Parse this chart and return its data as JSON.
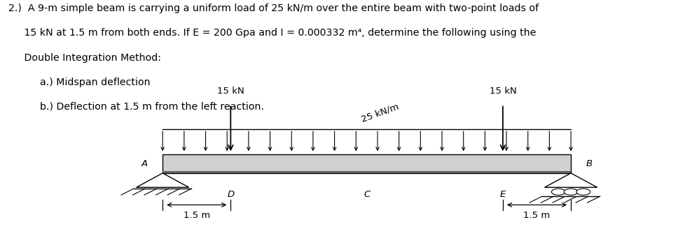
{
  "title_lines": [
    "2.)  A 9-m simple beam is carrying a uniform load of 25 kN/m over the entire beam with two-point loads of",
    "     15 kN at 1.5 m from both ends. If E = 200 Gpa and I = 0.000332 m⁴, determine the following using the",
    "     Double Integration Method:",
    "          a.) Midspan deflection",
    "          b.) Deflection at 1.5 m from the left reaction."
  ],
  "label_15kN_left": "15 kN",
  "label_15kN_right": "15 kN",
  "label_udl": "25 kN/m",
  "label_A": "A",
  "label_B": "B",
  "label_D": "D",
  "label_C": "C",
  "label_E": "E",
  "beam_color": "#d0d0d0",
  "beam_edge_color": "#000000",
  "background_color": "#ffffff",
  "text_color": "#000000",
  "bx0": 0.235,
  "bx1": 0.825,
  "by": 0.345,
  "bh": 0.075,
  "title_fontsize": 10.2,
  "diagram_fontsize": 9.5
}
